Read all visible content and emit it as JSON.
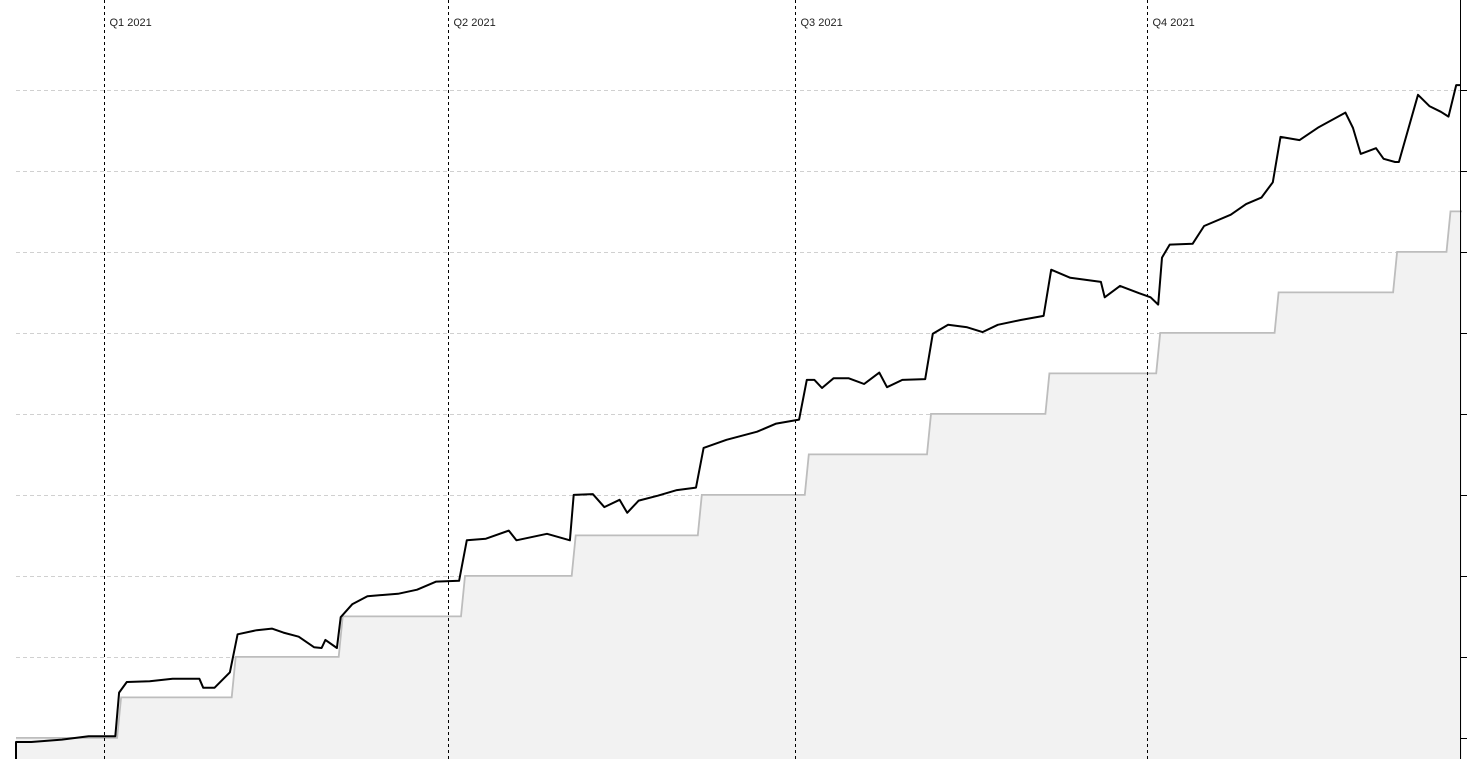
{
  "chart_data": {
    "type": "line",
    "title": "",
    "xlabel": "",
    "ylabel": "",
    "xlim": [
      "2020-12-09",
      "2021-12-22"
    ],
    "ylim": [
      -0.26,
      9.11
    ],
    "y_gridlines": [
      0,
      1,
      2,
      3,
      4,
      5,
      6,
      7,
      8
    ],
    "grid": "horizontal dashed",
    "y_axis_position": "right",
    "y_tick_labels_shown": false,
    "colors": {
      "main": "#000000",
      "baseline_line": "#bdbdbd",
      "baseline_fill": "#f2f2f2",
      "grid": "#d0d0d0"
    },
    "quarter_markers": [
      {
        "date": "2021-01-01",
        "label": "Q1 2021"
      },
      {
        "date": "2021-04-01",
        "label": "Q2 2021"
      },
      {
        "date": "2021-07-01",
        "label": "Q3 2021"
      },
      {
        "date": "2021-10-01",
        "label": "Q4 2021"
      }
    ],
    "series": [
      {
        "style": "step-area",
        "color": "#bdbdbd",
        "x": [
          "2020-12-09",
          "2021-01-05",
          "2021-02-04",
          "2021-03-04",
          "2021-04-05",
          "2021-05-04",
          "2021-06-06",
          "2021-07-04",
          "2021-08-05",
          "2021-09-05",
          "2021-10-04",
          "2021-11-04",
          "2021-12-05",
          "2021-12-19",
          "2021-12-22"
        ],
        "y": [
          0,
          0.5,
          1.0,
          1.5,
          2.0,
          2.5,
          3.0,
          3.5,
          4.0,
          4.5,
          5.0,
          5.5,
          6.0,
          6.5,
          6.5
        ]
      },
      {
        "style": "line",
        "color": "#000000",
        "x": [
          "2020-12-09",
          "2020-12-13",
          "2020-12-21",
          "2020-12-28",
          "2021-01-04",
          "2021-01-05",
          "2021-01-07",
          "2021-01-13",
          "2021-01-19",
          "2021-01-26",
          "2021-01-27",
          "2021-01-30",
          "2021-02-03",
          "2021-02-05",
          "2021-02-10",
          "2021-02-14",
          "2021-02-17",
          "2021-02-21",
          "2021-02-25",
          "2021-02-27",
          "2021-02-28",
          "2021-03-03",
          "2021-03-04",
          "2021-03-07",
          "2021-03-11",
          "2021-03-19",
          "2021-03-24",
          "2021-03-29",
          "2021-04-04",
          "2021-04-06",
          "2021-04-11",
          "2021-04-17",
          "2021-04-19",
          "2021-04-27",
          "2021-05-03",
          "2021-05-04",
          "2021-05-09",
          "2021-05-12",
          "2021-05-16",
          "2021-05-18",
          "2021-05-21",
          "2021-05-26",
          "2021-05-31",
          "2021-06-05",
          "2021-06-07",
          "2021-06-13",
          "2021-06-21",
          "2021-06-26",
          "2021-07-02",
          "2021-07-04",
          "2021-07-06",
          "2021-07-08",
          "2021-07-11",
          "2021-07-15",
          "2021-07-19",
          "2021-07-23",
          "2021-07-25",
          "2021-07-29",
          "2021-08-04",
          "2021-08-06",
          "2021-08-10",
          "2021-08-15",
          "2021-08-19",
          "2021-08-23",
          "2021-08-29",
          "2021-09-04",
          "2021-09-06",
          "2021-09-11",
          "2021-09-19",
          "2021-09-20",
          "2021-09-24",
          "2021-09-29",
          "2021-10-02",
          "2021-10-04",
          "2021-10-05",
          "2021-10-07",
          "2021-10-13",
          "2021-10-16",
          "2021-10-23",
          "2021-10-27",
          "2021-10-31",
          "2021-11-03",
          "2021-11-05",
          "2021-11-10",
          "2021-11-15",
          "2021-11-22",
          "2021-11-24",
          "2021-11-26",
          "2021-11-30",
          "2021-12-02",
          "2021-12-05",
          "2021-12-06",
          "2021-12-11",
          "2021-12-14",
          "2021-12-17",
          "2021-12-19",
          "2021-12-21",
          "2021-12-22"
        ],
        "y": [
          -0.05,
          -0.05,
          -0.02,
          0.02,
          0.02,
          0.56,
          0.69,
          0.7,
          0.73,
          0.73,
          0.62,
          0.62,
          0.81,
          1.28,
          1.33,
          1.35,
          1.3,
          1.25,
          1.12,
          1.11,
          1.21,
          1.11,
          1.49,
          1.65,
          1.75,
          1.78,
          1.83,
          1.93,
          1.94,
          2.44,
          2.46,
          2.56,
          2.44,
          2.52,
          2.44,
          3.0,
          3.01,
          2.85,
          2.94,
          2.78,
          2.93,
          2.99,
          3.06,
          3.09,
          3.58,
          3.68,
          3.78,
          3.88,
          3.93,
          4.42,
          4.42,
          4.32,
          4.44,
          4.44,
          4.37,
          4.51,
          4.33,
          4.42,
          4.43,
          4.99,
          5.1,
          5.07,
          5.01,
          5.1,
          5.16,
          5.21,
          5.78,
          5.68,
          5.63,
          5.44,
          5.58,
          5.49,
          5.44,
          5.35,
          5.93,
          6.09,
          6.1,
          6.32,
          6.46,
          6.59,
          6.67,
          6.86,
          7.42,
          7.38,
          7.54,
          7.72,
          7.53,
          7.21,
          7.28,
          7.15,
          7.11,
          7.11,
          7.94,
          7.8,
          7.73,
          7.67,
          8.06,
          8.06
        ]
      }
    ]
  }
}
